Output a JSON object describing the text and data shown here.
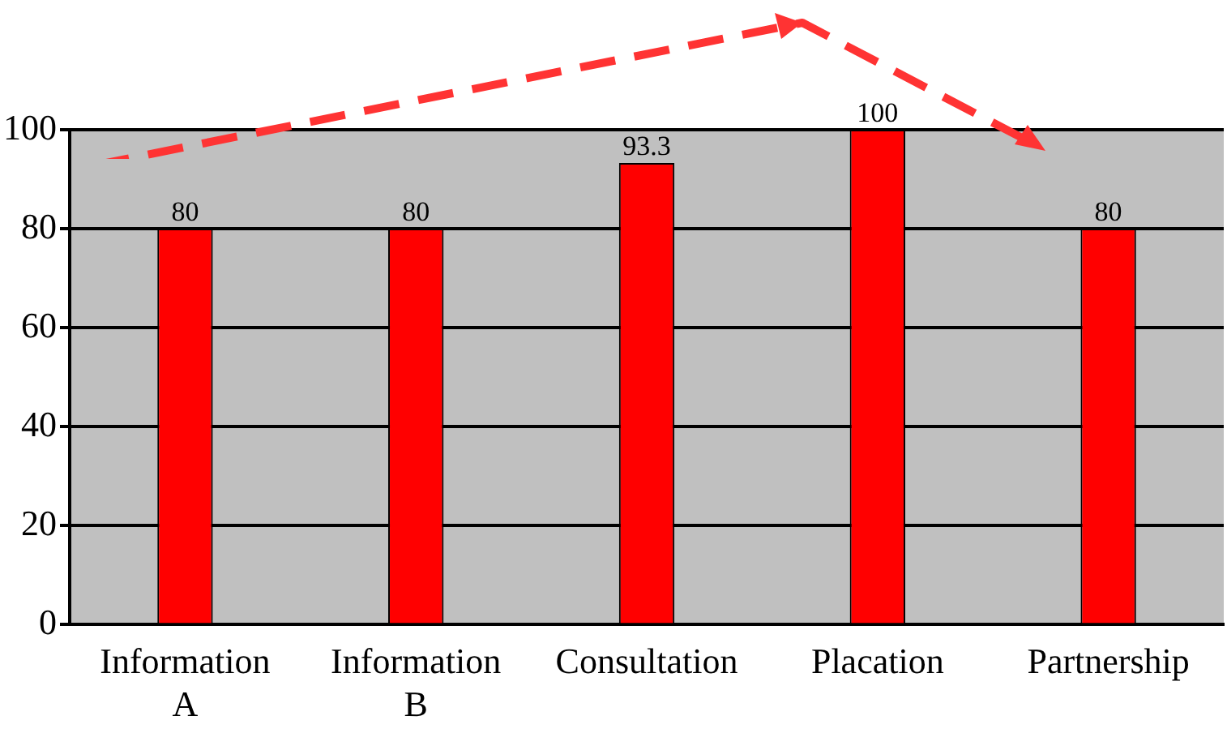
{
  "chart_data": {
    "type": "bar",
    "categories": [
      "Information A",
      "Information B",
      "Consultation",
      "Placation",
      "Partnership"
    ],
    "values": [
      80,
      80,
      93.3,
      100,
      80
    ],
    "color": "#ff0000",
    "ylim": [
      0,
      100
    ],
    "yticks": [
      0,
      20,
      40,
      60,
      80,
      100
    ],
    "grid": "y",
    "data_labels": true,
    "legend": false
  }
}
